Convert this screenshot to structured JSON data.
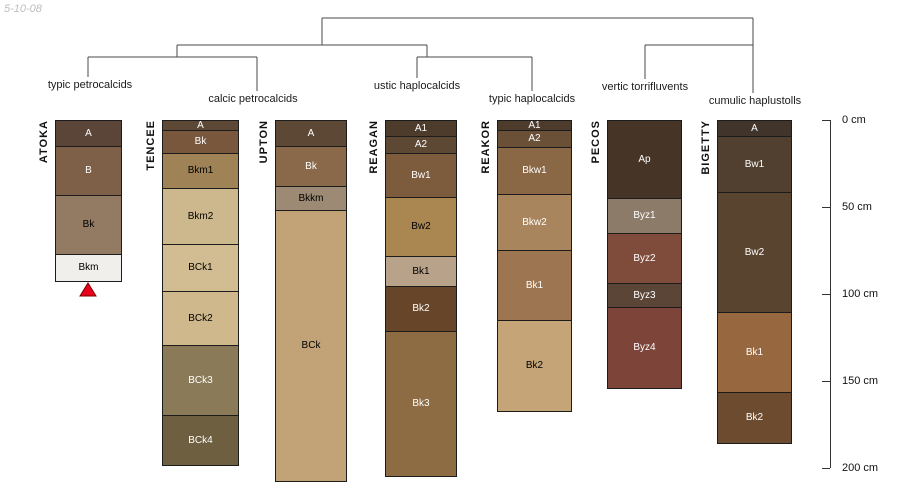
{
  "meta": {
    "date_stamp": "5-10-08"
  },
  "taxonomy": {
    "groups": [
      {
        "label": "typic petrocalcids"
      },
      {
        "label": "calcic petrocalcids"
      },
      {
        "label": "ustic haplocalcids"
      },
      {
        "label": "typic haplocalcids"
      },
      {
        "label": "vertic torrifluvents"
      },
      {
        "label": "cumulic haplustolls"
      }
    ]
  },
  "profiles": [
    {
      "name": "ATOKA",
      "marker": "red-triangle",
      "horizons": [
        {
          "label": "A",
          "cm": 15,
          "color": "#5a4538",
          "text": "#ffffff"
        },
        {
          "label": "B",
          "cm": 28,
          "color": "#7e5f48",
          "text": "#ffffff"
        },
        {
          "label": "Bk",
          "cm": 34,
          "color": "#937a62",
          "text": "#000000"
        },
        {
          "label": "Bkm",
          "cm": 15,
          "color": "#f1efeb",
          "text": "#000000"
        }
      ]
    },
    {
      "name": "TENCEE",
      "horizons": [
        {
          "label": "A",
          "cm": 6,
          "color": "#5d4836",
          "text": "#ffffff"
        },
        {
          "label": "Bk",
          "cm": 13,
          "color": "#78573d",
          "text": "#ffffff"
        },
        {
          "label": "Bkm1",
          "cm": 20,
          "color": "#a08257",
          "text": "#000000"
        },
        {
          "label": "Bkm2",
          "cm": 32,
          "color": "#cdb88e",
          "text": "#000000"
        },
        {
          "label": "BCk1",
          "cm": 27,
          "color": "#d2bc92",
          "text": "#000000"
        },
        {
          "label": "BCk2",
          "cm": 31,
          "color": "#cfb88c",
          "text": "#000000"
        },
        {
          "label": "BCk3",
          "cm": 40,
          "color": "#8b7a57",
          "text": "#ffffff"
        },
        {
          "label": "BCk4",
          "cm": 28,
          "color": "#6f5f41",
          "text": "#ffffff"
        }
      ]
    },
    {
      "name": "UPTON",
      "horizons": [
        {
          "label": "A",
          "cm": 15,
          "color": "#5d4836",
          "text": "#ffffff"
        },
        {
          "label": "Bk",
          "cm": 23,
          "color": "#8a684a",
          "text": "#ffffff"
        },
        {
          "label": "Bkkm",
          "cm": 14,
          "color": "#9c8a74",
          "text": "#000000"
        },
        {
          "label": "BCk",
          "cm": 155,
          "color": "#c2a277",
          "text": "#000000"
        }
      ]
    },
    {
      "name": "REAGAN",
      "horizons": [
        {
          "label": "A1",
          "cm": 9,
          "color": "#4d3b2c",
          "text": "#ffffff"
        },
        {
          "label": "A2",
          "cm": 10,
          "color": "#5d4834",
          "text": "#ffffff"
        },
        {
          "label": "Bw1",
          "cm": 25,
          "color": "#7d5b3d",
          "text": "#ffffff"
        },
        {
          "label": "Bw2",
          "cm": 34,
          "color": "#aa8751",
          "text": "#000000"
        },
        {
          "label": "Bk1",
          "cm": 17,
          "color": "#b8a38a",
          "text": "#000000"
        },
        {
          "label": "Bk2",
          "cm": 26,
          "color": "#664528",
          "text": "#ffffff"
        },
        {
          "label": "Bk3",
          "cm": 83,
          "color": "#8d6b43",
          "text": "#ffffff"
        }
      ]
    },
    {
      "name": "REAKOR",
      "horizons": [
        {
          "label": "A1",
          "cm": 6,
          "color": "#4d3b2c",
          "text": "#ffffff"
        },
        {
          "label": "A2",
          "cm": 10,
          "color": "#6b5038",
          "text": "#ffffff"
        },
        {
          "label": "Bkw1",
          "cm": 27,
          "color": "#8a6745",
          "text": "#ffffff"
        },
        {
          "label": "Bkw2",
          "cm": 32,
          "color": "#a9855d",
          "text": "#ffffff"
        },
        {
          "label": "Bk1",
          "cm": 40,
          "color": "#9d7550",
          "text": "#ffffff"
        },
        {
          "label": "Bk2",
          "cm": 52,
          "color": "#c5a478",
          "text": "#000000"
        }
      ]
    },
    {
      "name": "PECOS",
      "horizons": [
        {
          "label": "Ap",
          "cm": 45,
          "color": "#463527",
          "text": "#ffffff"
        },
        {
          "label": "Byz1",
          "cm": 20,
          "color": "#8c7b69",
          "text": "#ffffff"
        },
        {
          "label": "Byz2",
          "cm": 29,
          "color": "#7f4c3b",
          "text": "#ffffff"
        },
        {
          "label": "Byz3",
          "cm": 14,
          "color": "#5a4536",
          "text": "#ffffff"
        },
        {
          "label": "Byz4",
          "cm": 46,
          "color": "#7d453a",
          "text": "#ffffff"
        }
      ]
    },
    {
      "name": "BIGETTY",
      "horizons": [
        {
          "label": "A",
          "cm": 9,
          "color": "#40342b",
          "text": "#ffffff"
        },
        {
          "label": "Bw1",
          "cm": 32,
          "color": "#51402f",
          "text": "#ffffff"
        },
        {
          "label": "Bw2",
          "cm": 69,
          "color": "#594430",
          "text": "#ffffff"
        },
        {
          "label": "Bk1",
          "cm": 46,
          "color": "#976840",
          "text": "#ffffff"
        },
        {
          "label": "Bk2",
          "cm": 29,
          "color": "#6d4b2f",
          "text": "#ffffff"
        }
      ]
    }
  ],
  "ruler": {
    "marks": [
      {
        "label": "0 cm",
        "cm": 0
      },
      {
        "label": "50 cm",
        "cm": 50
      },
      {
        "label": "100 cm",
        "cm": 100
      },
      {
        "label": "150 cm",
        "cm": 150
      },
      {
        "label": "200 cm",
        "cm": 200
      }
    ]
  },
  "marker": {
    "color": "#e8001c",
    "edge": "#7a0000"
  }
}
